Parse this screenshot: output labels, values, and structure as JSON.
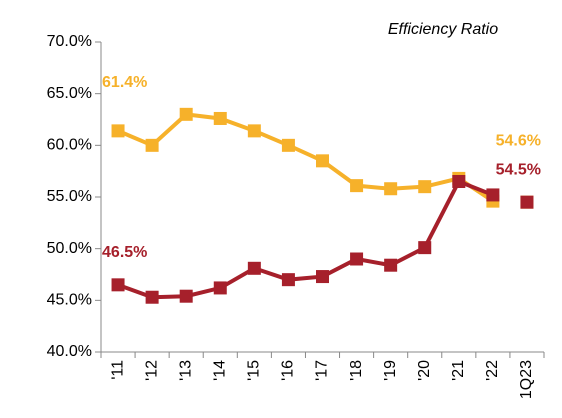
{
  "chart_data": {
    "type": "line",
    "title": "Efficiency Ratio",
    "categories": [
      "'11",
      "'12",
      "'13",
      "'14",
      "'15",
      "'16",
      "'17",
      "'18",
      "'19",
      "'20",
      "'21",
      "'22",
      "1Q23"
    ],
    "series": [
      {
        "color": "#F6B12A",
        "values": [
          61.4,
          60.0,
          63.0,
          62.6,
          61.4,
          60.0,
          58.5,
          56.1,
          55.8,
          56.0,
          56.8,
          54.6,
          54.5
        ],
        "value_labels": [
          "61.4%",
          null,
          null,
          null,
          null,
          null,
          null,
          null,
          null,
          null,
          null,
          "54.6%",
          null
        ]
      },
      {
        "color": "#A6202B",
        "values": [
          46.5,
          45.3,
          45.4,
          46.2,
          48.1,
          47.0,
          47.3,
          49.0,
          48.4,
          50.1,
          56.5,
          55.2,
          54.5
        ],
        "value_labels": [
          "46.5%",
          null,
          null,
          null,
          null,
          null,
          null,
          null,
          null,
          null,
          null,
          null,
          "54.5%"
        ]
      }
    ],
    "ylim": [
      40,
      70
    ],
    "yticks": [
      {
        "value": 40,
        "label": "40.0%"
      },
      {
        "value": 45,
        "label": "45.0%"
      },
      {
        "value": 50,
        "label": "50.0%"
      },
      {
        "value": 55,
        "label": "55.0%"
      },
      {
        "value": 60,
        "label": "60.0%"
      },
      {
        "value": 65,
        "label": "65.0%"
      },
      {
        "value": 70,
        "label": "70.0%"
      }
    ]
  }
}
